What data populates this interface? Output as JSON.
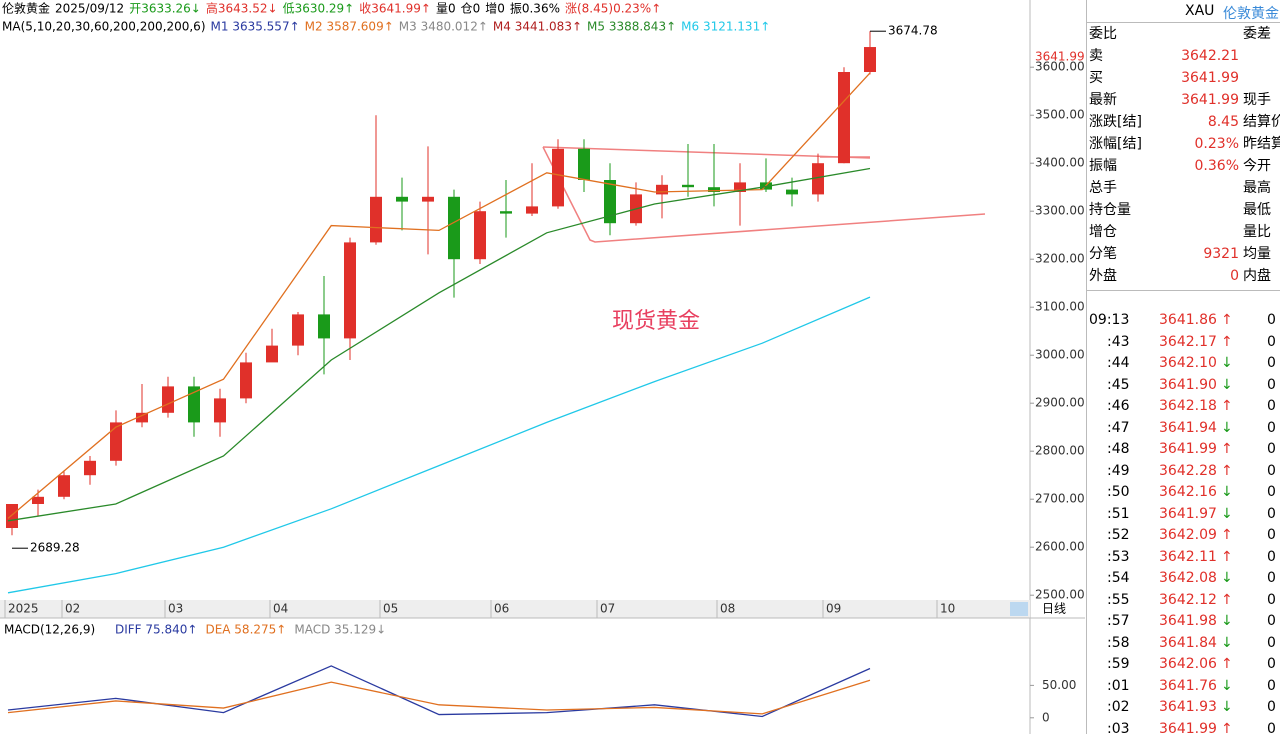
{
  "header": {
    "items": [
      {
        "text": "伦敦黄金",
        "color": "#000"
      },
      {
        "text": "2025/09/12",
        "color": "#000"
      },
      {
        "text": "开3633.26↓",
        "color": "#1a9a1a"
      },
      {
        "text": "高3643.52↓",
        "color": "#e0302a"
      },
      {
        "text": "低3630.29↑",
        "color": "#1a9a1a"
      },
      {
        "text": "收3641.99↑",
        "color": "#e0302a"
      },
      {
        "text": "量0",
        "color": "#000"
      },
      {
        "text": "仓0",
        "color": "#000"
      },
      {
        "text": "增0",
        "color": "#000"
      },
      {
        "text": "振0.36%",
        "color": "#000"
      },
      {
        "text": "涨(8.45)0.23%↑",
        "color": "#e0302a"
      }
    ]
  },
  "ma_header": {
    "items": [
      {
        "text": "MA(5,10,20,30,60,200,200,200,6)",
        "color": "#000"
      },
      {
        "text": "M1 3635.557↑",
        "color": "#2a3aa0"
      },
      {
        "text": "M2 3587.609↑",
        "color": "#e07020"
      },
      {
        "text": "M3 3480.012↑",
        "color": "#888"
      },
      {
        "text": "M4 3441.083↑",
        "color": "#b02020"
      },
      {
        "text": "M5 3388.843↑",
        "color": "#2a8a2a"
      },
      {
        "text": "M6 3121.131↑",
        "color": "#20c8e8"
      }
    ]
  },
  "chart_data": [
    {
      "type": "candlestick",
      "annotation": "现货黄金",
      "high_label": "3674.78",
      "low_label": "2689.28",
      "last_label": "3641.99",
      "period": "日线",
      "xticks": [
        "2025",
        "02",
        "03",
        "04",
        "05",
        "06",
        "07",
        "08",
        "09",
        "10"
      ],
      "ylim": [
        2490,
        3740
      ],
      "yticks": [
        {
          "value": 2500,
          "label": "2500.00"
        },
        {
          "value": 2600,
          "label": "2600.00"
        },
        {
          "value": 2700,
          "label": "2700.00"
        },
        {
          "value": 2800,
          "label": "2800.00"
        },
        {
          "value": 2900,
          "label": "2900.00"
        },
        {
          "value": 3000,
          "label": "3000.00"
        },
        {
          "value": 3100,
          "label": "3100.00"
        },
        {
          "value": 3200,
          "label": "3200.00"
        },
        {
          "value": 3300,
          "label": "3300.00"
        },
        {
          "value": 3400,
          "label": "3400.00"
        },
        {
          "value": 3500,
          "label": "3500.00"
        },
        {
          "value": 3600,
          "label": "3600.00"
        }
      ],
      "up_color": "#e0302a",
      "down_color": "#1a9a1a",
      "open": [
        2640,
        2690,
        2705,
        2750,
        2780,
        2860,
        2880,
        2935,
        2860,
        2910,
        2985,
        3020,
        3085,
        3035,
        3235,
        3330,
        3320,
        3330,
        3200,
        3300,
        3295,
        3310,
        3430,
        3365,
        3275,
        3335,
        3355,
        3350,
        3340,
        3360,
        3345,
        3335,
        3400,
        3590
      ],
      "high": [
        2690,
        2720,
        2760,
        2790,
        2885,
        2940,
        2955,
        2955,
        2930,
        3005,
        3055,
        3090,
        3165,
        3245,
        3500,
        3370,
        3435,
        3345,
        3320,
        3365,
        3400,
        3450,
        3450,
        3400,
        3360,
        3375,
        3440,
        3440,
        3400,
        3410,
        3370,
        3420,
        3600,
        3675
      ],
      "low": [
        2625,
        2665,
        2700,
        2730,
        2770,
        2850,
        2870,
        2830,
        2830,
        2900,
        2990,
        3000,
        2960,
        2990,
        3230,
        3260,
        3210,
        3120,
        3190,
        3245,
        3290,
        3305,
        3340,
        3250,
        3270,
        3285,
        3330,
        3310,
        3270,
        3340,
        3310,
        3320,
        3400,
        3585
      ],
      "close": [
        2690,
        2705,
        2750,
        2780,
        2860,
        2880,
        2935,
        2860,
        2910,
        2985,
        3020,
        3085,
        3035,
        3235,
        3330,
        3320,
        3330,
        3200,
        3300,
        3295,
        3310,
        3430,
        3365,
        3275,
        3335,
        3355,
        3350,
        3340,
        3360,
        3345,
        3335,
        3400,
        3590,
        3642
      ],
      "series": [
        {
          "name": "M2",
          "color": "#e07020",
          "values": [
            2660,
            2850,
            2950,
            3270,
            3260,
            3380,
            3340,
            3345,
            3588
          ]
        },
        {
          "name": "M5",
          "color": "#2a8a2a",
          "values": [
            2655,
            2690,
            2790,
            2990,
            3130,
            3255,
            3315,
            3350,
            3389
          ]
        },
        {
          "name": "M6",
          "color": "#20c8e8",
          "values": [
            2505,
            2545,
            2600,
            2680,
            2770,
            2860,
            2945,
            3025,
            3121
          ]
        }
      ]
    },
    {
      "type": "line",
      "title": "MACD(12,26,9)",
      "legend": [
        {
          "text": "DIFF 75.840↑",
          "color": "#2a3aa0"
        },
        {
          "text": "DEA 58.275↑",
          "color": "#e07020"
        },
        {
          "text": "MACD 35.129↓",
          "color": "#888"
        }
      ],
      "ylim": [
        -25,
        120
      ],
      "yticks": [
        0,
        {
          "value": 50,
          "label": "50.00"
        }
      ],
      "series": [
        {
          "name": "DIFF",
          "color": "#2a3aa0",
          "values": [
            12,
            30,
            8,
            80,
            5,
            8,
            20,
            2,
            76
          ]
        },
        {
          "name": "DEA",
          "color": "#e07020",
          "values": [
            8,
            26,
            15,
            55,
            20,
            12,
            16,
            6,
            58
          ]
        }
      ]
    }
  ],
  "quote_panel": {
    "code": "XAU",
    "name": "伦敦黄金",
    "rows": [
      [
        "委比",
        "",
        "委差"
      ],
      [
        "卖",
        "3642.21",
        ""
      ],
      [
        "买",
        "3641.99",
        ""
      ],
      [
        "最新",
        "3641.99",
        "现手"
      ],
      [
        "涨跌[结]",
        "8.45",
        "结算价"
      ],
      [
        "涨幅[结]",
        "0.23%",
        "昨结算"
      ],
      [
        "振幅",
        "0.36%",
        "今开"
      ],
      [
        "总手",
        "",
        "最高"
      ],
      [
        "持仓量",
        "",
        "最低"
      ],
      [
        "增仓",
        "",
        "量比"
      ],
      [
        "分笔",
        "9321",
        "均量"
      ],
      [
        "外盘",
        "0",
        "内盘"
      ]
    ],
    "ticks": [
      [
        "09:13",
        "3641.86",
        "↑",
        "0"
      ],
      [
        ":43",
        "3642.17",
        "↑",
        "0"
      ],
      [
        ":44",
        "3642.10",
        "↓",
        "0"
      ],
      [
        ":45",
        "3641.90",
        "↓",
        "0"
      ],
      [
        ":46",
        "3642.18",
        "↑",
        "0"
      ],
      [
        ":47",
        "3641.94",
        "↓",
        "0"
      ],
      [
        ":48",
        "3641.99",
        "↑",
        "0"
      ],
      [
        ":49",
        "3642.28",
        "↑",
        "0"
      ],
      [
        ":50",
        "3642.16",
        "↓",
        "0"
      ],
      [
        ":51",
        "3641.97",
        "↓",
        "0"
      ],
      [
        ":52",
        "3642.09",
        "↑",
        "0"
      ],
      [
        ":53",
        "3642.11",
        "↑",
        "0"
      ],
      [
        ":54",
        "3642.08",
        "↓",
        "0"
      ],
      [
        ":55",
        "3642.12",
        "↑",
        "0"
      ],
      [
        ":57",
        "3641.98",
        "↓",
        "0"
      ],
      [
        ":58",
        "3641.84",
        "↓",
        "0"
      ],
      [
        ":59",
        "3642.06",
        "↑",
        "0"
      ],
      [
        ":01",
        "3641.76",
        "↓",
        "0"
      ],
      [
        ":02",
        "3641.93",
        "↓",
        "0"
      ],
      [
        ":03",
        "3641.99",
        "↑",
        "0"
      ]
    ]
  }
}
